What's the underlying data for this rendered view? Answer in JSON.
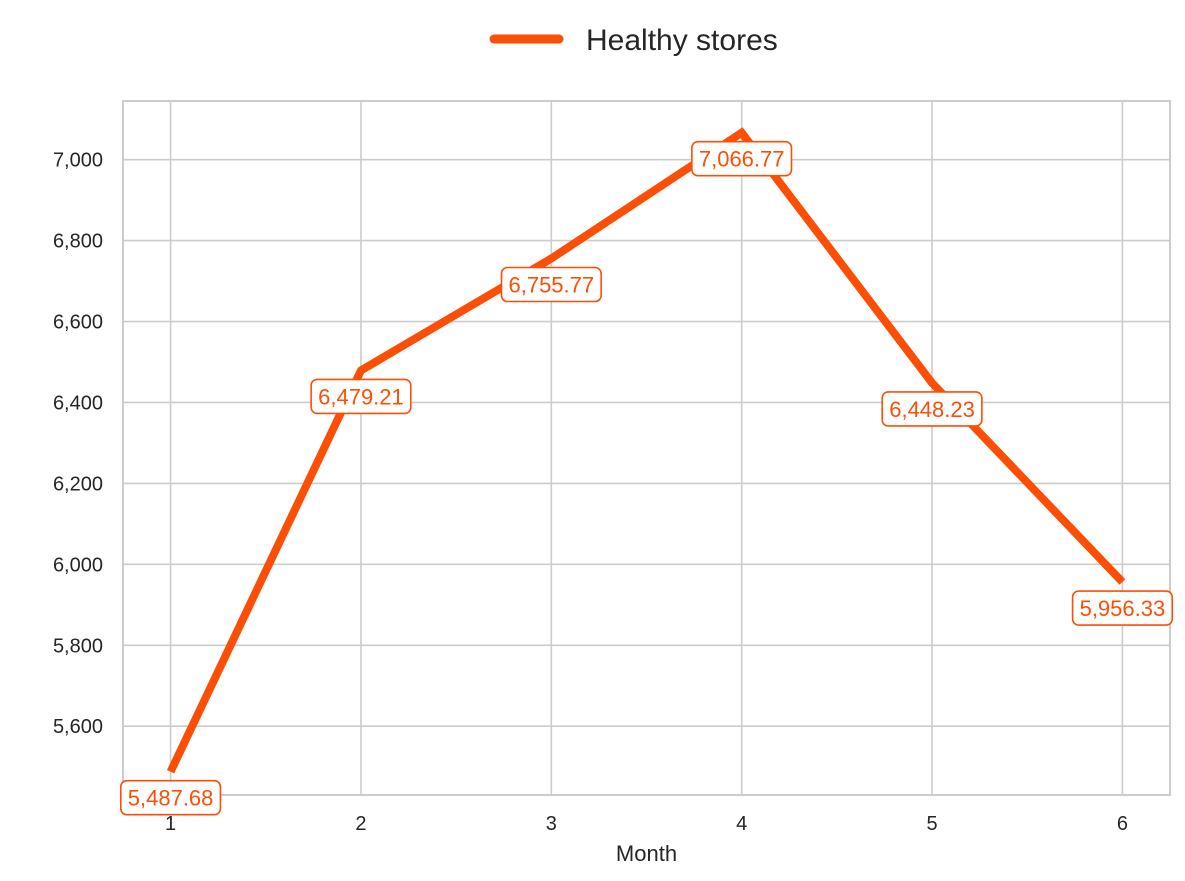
{
  "chart_data": {
    "type": "line",
    "xlabel": "Month",
    "ylabel": "",
    "x": [
      1,
      2,
      3,
      4,
      5,
      6
    ],
    "xlim": [
      0.75,
      6.25
    ],
    "ylim": [
      5430,
      7145
    ],
    "y_ticks": [
      5600,
      5800,
      6000,
      6200,
      6400,
      6600,
      6800,
      7000
    ],
    "y_tick_labels": [
      "5,600",
      "5,800",
      "6,000",
      "6,200",
      "6,400",
      "6,600",
      "6,800",
      "7,000"
    ],
    "x_tick_labels": [
      "1",
      "2",
      "3",
      "4",
      "5",
      "6"
    ],
    "grid": true,
    "legend_position": "top-center",
    "series": [
      {
        "name": "Healthy stores",
        "color": "#fc4f05",
        "values": [
          5487.68,
          6479.21,
          6755.77,
          7066.77,
          6448.23,
          5956.33
        ],
        "labels": [
          "5,487.68",
          "6,479.21",
          "6,755.77",
          "7,066.77",
          "6,448.23",
          "5,956.33"
        ]
      }
    ]
  }
}
